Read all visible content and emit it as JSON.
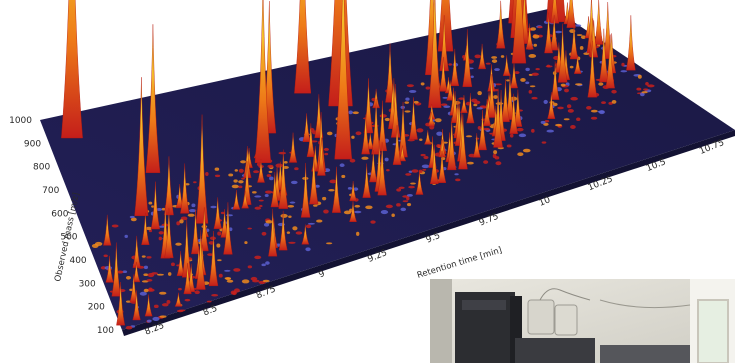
{
  "chart_data": {
    "type": "area",
    "variant": "3d-surface",
    "xlabel": "Retention time [min]",
    "ylabel": "Observed mass [m/z]",
    "x_ticks": [
      "8.25",
      "8.5",
      "8.75",
      "9",
      "9.25",
      "9.5",
      "9.75",
      "10",
      "10.25",
      "10.5",
      "10.75"
    ],
    "y_ticks": [
      "100",
      "200",
      "300",
      "400",
      "500",
      "600",
      "700",
      "800",
      "900",
      "1000"
    ],
    "xlim": [
      8.1,
      10.85
    ],
    "ylim": [
      100,
      1000
    ],
    "grid": false,
    "colors": {
      "floor": "#1c1a4a",
      "peak_high": "#f4e23a",
      "peak_mid": "#f08a1c",
      "peak_low": "#c8201c",
      "noise_blue": "#5a5fd0"
    },
    "prominent_peaks": [
      {
        "rt": 8.22,
        "mz": 900,
        "relative_height": 0.85
      },
      {
        "rt": 8.38,
        "mz": 520,
        "relative_height": 0.42
      },
      {
        "rt": 8.52,
        "mz": 680,
        "relative_height": 0.45
      },
      {
        "rt": 8.62,
        "mz": 420,
        "relative_height": 0.33
      },
      {
        "rt": 9.02,
        "mz": 600,
        "relative_height": 0.55
      },
      {
        "rt": 9.13,
        "mz": 720,
        "relative_height": 0.4
      },
      {
        "rt": 9.36,
        "mz": 520,
        "relative_height": 0.62
      },
      {
        "rt": 9.4,
        "mz": 860,
        "relative_height": 0.58
      },
      {
        "rt": 9.52,
        "mz": 760,
        "relative_height": 1.0
      },
      {
        "rt": 9.9,
        "mz": 640,
        "relative_height": 0.38
      },
      {
        "rt": 10.02,
        "mz": 800,
        "relative_height": 0.4
      },
      {
        "rt": 10.18,
        "mz": 900,
        "relative_height": 0.5
      },
      {
        "rt": 10.42,
        "mz": 750,
        "relative_height": 0.44
      },
      {
        "rt": 10.55,
        "mz": 880,
        "relative_height": 0.68
      },
      {
        "rt": 10.62,
        "mz": 960,
        "relative_height": 0.7
      },
      {
        "rt": 10.78,
        "mz": 920,
        "relative_height": 0.72
      }
    ]
  },
  "inset_photo": {
    "subject": "mass spectrometer instrument"
  }
}
